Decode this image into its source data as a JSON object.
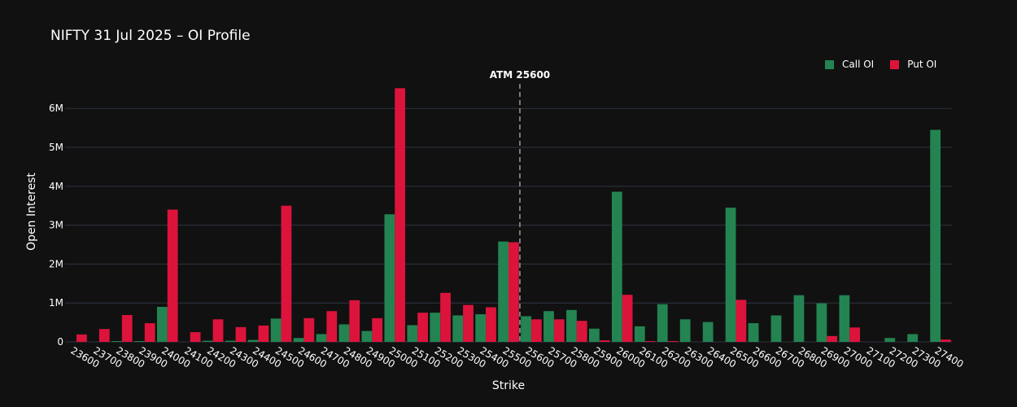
{
  "chart_data": {
    "type": "bar",
    "title": "NIFTY 31 Jul 2025 – OI Profile",
    "xlabel": "Strike",
    "ylabel": "Open Interest",
    "ylim": [
      0,
      6800000
    ],
    "yticks": [
      0,
      1000000,
      2000000,
      3000000,
      4000000,
      5000000,
      6000000
    ],
    "ytick_labels": [
      "0",
      "1M",
      "2M",
      "3M",
      "4M",
      "5M",
      "6M"
    ],
    "grid": "horizontal",
    "legend_position": "top-right",
    "categories": [
      "23600",
      "23700",
      "23800",
      "23900",
      "24000",
      "24100",
      "24200",
      "24300",
      "24400",
      "24500",
      "24600",
      "24700",
      "24800",
      "24900",
      "25000",
      "25100",
      "25200",
      "25300",
      "25400",
      "25500",
      "25600",
      "25700",
      "25800",
      "25900",
      "26000",
      "26100",
      "26200",
      "26300",
      "26400",
      "26500",
      "26600",
      "26700",
      "26800",
      "26900",
      "27000",
      "27100",
      "27200",
      "27300",
      "27400"
    ],
    "series": [
      {
        "name": "Call OI",
        "color": "#238452",
        "values": [
          0,
          0,
          20000,
          20000,
          900000,
          0,
          30000,
          30000,
          50000,
          600000,
          100000,
          200000,
          450000,
          280000,
          3280000,
          430000,
          750000,
          680000,
          710000,
          2580000,
          660000,
          790000,
          820000,
          340000,
          3860000,
          400000,
          970000,
          580000,
          510000,
          3450000,
          480000,
          680000,
          1200000,
          990000,
          1200000,
          0,
          100000,
          200000,
          5450000
        ]
      },
      {
        "name": "Put OI",
        "color": "#DC143C",
        "values": [
          190000,
          330000,
          690000,
          480000,
          3400000,
          250000,
          580000,
          380000,
          420000,
          3500000,
          610000,
          790000,
          1070000,
          610000,
          6520000,
          750000,
          1260000,
          950000,
          890000,
          2560000,
          580000,
          580000,
          540000,
          40000,
          1210000,
          20000,
          20000,
          0,
          0,
          1080000,
          0,
          0,
          0,
          150000,
          370000,
          0,
          0,
          0,
          60000
        ]
      }
    ],
    "annotation": {
      "label": "ATM 25600",
      "category": "25600"
    }
  }
}
